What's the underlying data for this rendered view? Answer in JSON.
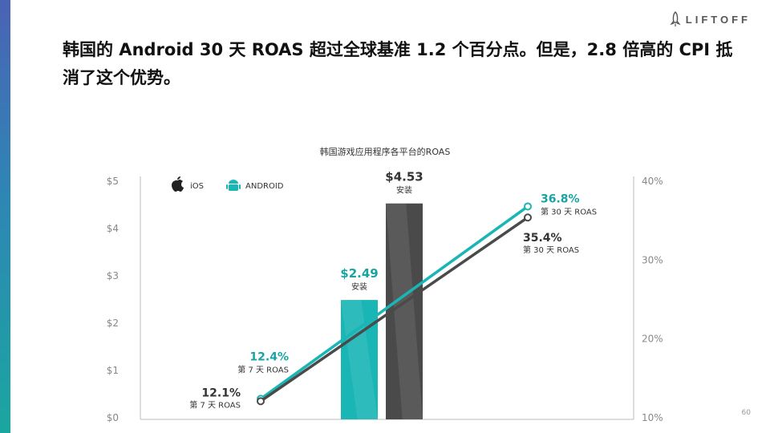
{
  "brand": {
    "name": "LIFTOFF"
  },
  "headline": "韩国的 Android 30 天 ROAS 超过全球基准 1.2 个百分点。但是，2.8 倍高的 CPI 抵消了这个优势。",
  "page_number": "60",
  "colors": {
    "ios": "#4a4a4a",
    "android": "#1ab5b5",
    "accent_text": "#1aa3a3"
  },
  "chart_data": {
    "type": "bar+line",
    "title": "韩国游戏应用程序各平台的ROAS",
    "legend": [
      {
        "name": "iOS",
        "icon": "apple-icon"
      },
      {
        "name": "ANDROID",
        "icon": "android-icon"
      }
    ],
    "left_axis": {
      "ticks": [
        "$0",
        "$1",
        "$2",
        "$3",
        "$4",
        "$5"
      ],
      "range": [
        0,
        5
      ]
    },
    "right_axis": {
      "ticks": [
        "10%",
        "20%",
        "30%",
        "40%"
      ],
      "range": [
        10,
        40
      ]
    },
    "bars": [
      {
        "series": "ANDROID",
        "value": 2.49,
        "label": "$2.49",
        "sublabel": "安装"
      },
      {
        "series": "iOS",
        "value": 4.53,
        "label": "$4.53",
        "sublabel": "安装"
      }
    ],
    "lines": [
      {
        "series": "ANDROID",
        "points": [
          {
            "day": "第 7 天",
            "value": 12.4,
            "label": "12.4%",
            "sublabel": "第 7 天 ROAS"
          },
          {
            "day": "第 30 天",
            "value": 36.8,
            "label": "36.8%",
            "sublabel": "第 30 天 ROAS"
          }
        ]
      },
      {
        "series": "iOS",
        "points": [
          {
            "day": "第 7 天",
            "value": 12.1,
            "label": "12.1%",
            "sublabel": "第 7 天 ROAS"
          },
          {
            "day": "第 30 天",
            "value": 35.4,
            "label": "35.4%",
            "sublabel": "第 30 天 ROAS"
          }
        ]
      }
    ]
  }
}
